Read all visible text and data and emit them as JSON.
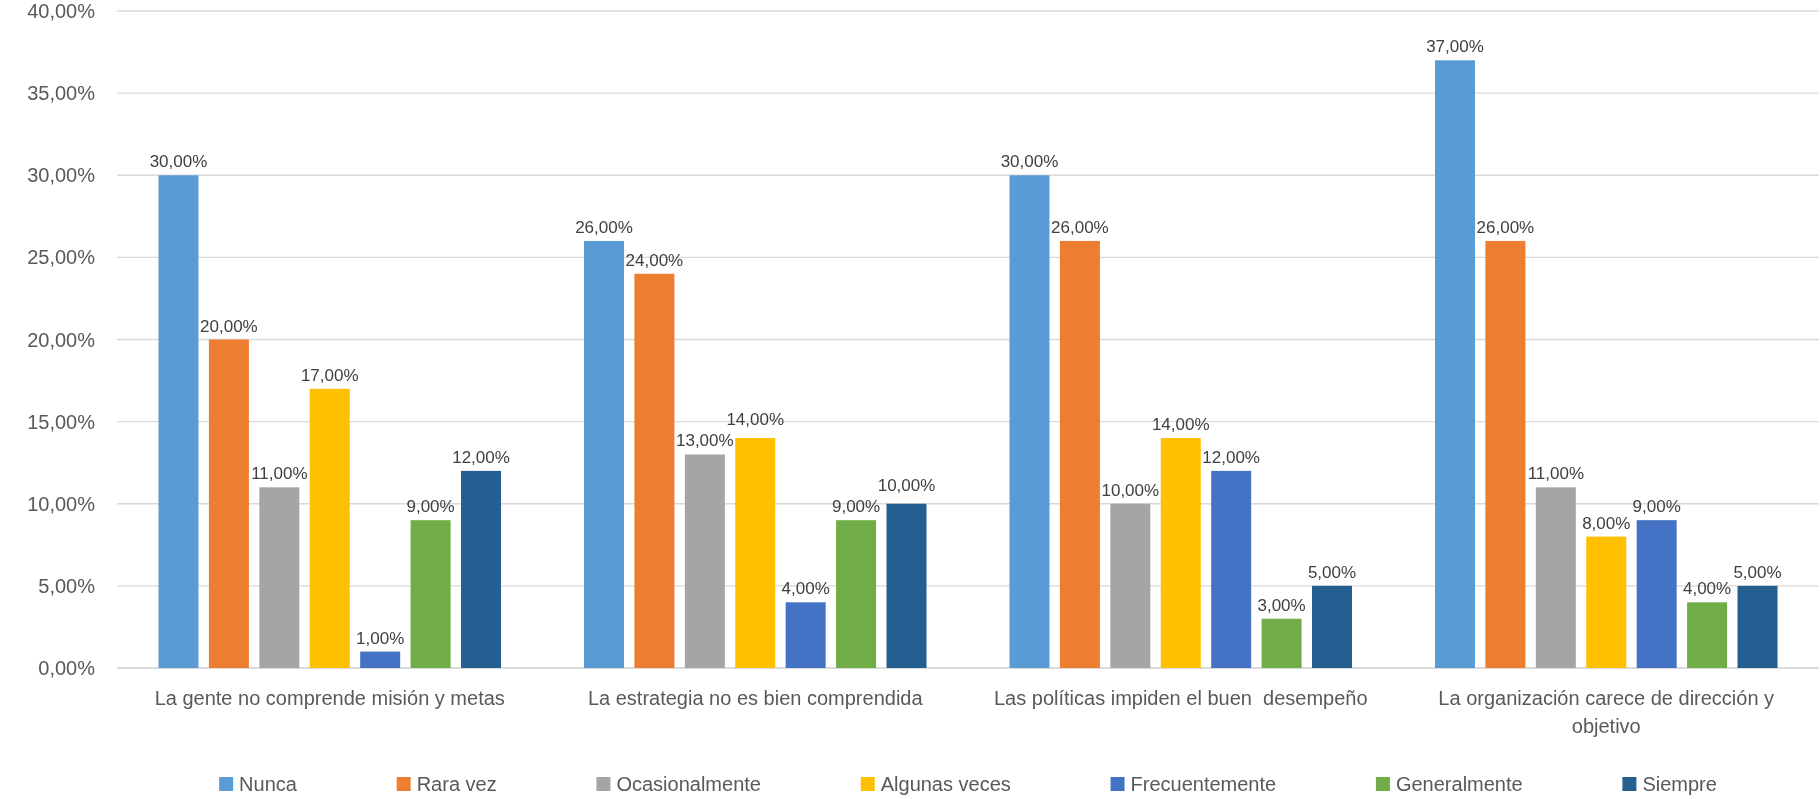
{
  "chart_data": {
    "type": "bar",
    "categories": [
      "La gente no comprende misión y metas",
      "La estrategia no es bien comprendida",
      "Las políticas impiden el buen  desempeño",
      "La organización carece de dirección y objetivo"
    ],
    "series": [
      {
        "name": "Nunca",
        "color": "#5b9bd5",
        "values": [
          30,
          26,
          30,
          37
        ],
        "value_labels": [
          "30,00%",
          "26,00%",
          "30,00%",
          "37,00%"
        ]
      },
      {
        "name": "Rara vez",
        "color": "#ed7d31",
        "values": [
          20,
          24,
          26,
          26
        ],
        "value_labels": [
          "20,00%",
          "24,00%",
          "26,00%",
          "26,00%"
        ]
      },
      {
        "name": "Ocasionalmente",
        "color": "#a5a5a5",
        "values": [
          11,
          13,
          10,
          11
        ],
        "value_labels": [
          "11,00%",
          "13,00%",
          "10,00%",
          "11,00%"
        ]
      },
      {
        "name": "Algunas veces",
        "color": "#ffc000",
        "values": [
          17,
          14,
          14,
          8
        ],
        "value_labels": [
          "17,00%",
          "14,00%",
          "14,00%",
          "8,00%"
        ]
      },
      {
        "name": "Frecuentemente",
        "color": "#4472c4",
        "values": [
          1,
          4,
          12,
          9
        ],
        "value_labels": [
          "1,00%",
          "4,00%",
          "12,00%",
          "9,00%"
        ]
      },
      {
        "name": "Generalmente",
        "color": "#70ad47",
        "values": [
          9,
          9,
          3,
          4
        ],
        "value_labels": [
          "9,00%",
          "9,00%",
          "3,00%",
          "4,00%"
        ]
      },
      {
        "name": "Siempre",
        "color": "#255e91",
        "values": [
          12,
          10,
          5,
          5
        ],
        "value_labels": [
          "12,00%",
          "10,00%",
          "5,00%",
          "5,00%"
        ]
      }
    ],
    "ylim": [
      0,
      40
    ],
    "yticks": [
      {
        "value": 0,
        "label": "0,00%"
      },
      {
        "value": 5,
        "label": "5,00%"
      },
      {
        "value": 10,
        "label": "10,00%"
      },
      {
        "value": 15,
        "label": "15,00%"
      },
      {
        "value": 20,
        "label": "20,00%"
      },
      {
        "value": 25,
        "label": "25,00%"
      },
      {
        "value": 30,
        "label": "30,00%"
      },
      {
        "value": 35,
        "label": "35,00%"
      },
      {
        "value": 40,
        "label": "40,00%"
      }
    ],
    "grid": "y",
    "legend": "bottom"
  }
}
